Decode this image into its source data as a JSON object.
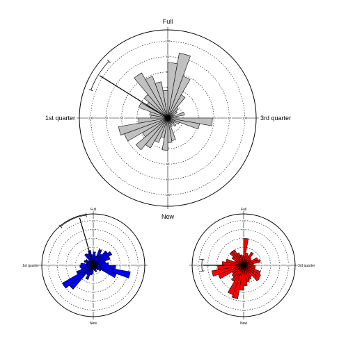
{
  "chart_data": [
    {
      "type": "rose",
      "compass_labels": {
        "top": "Full",
        "bottom": "New",
        "left": "1st quarter",
        "right": "3rd quarter"
      },
      "radial_max": 100,
      "ring_ticks": [
        "20",
        "40",
        "60",
        "80",
        "100"
      ],
      "grid": true,
      "color": "#c0c0c0",
      "bins_deg": [
        0,
        10,
        20,
        30,
        40,
        50,
        60,
        70,
        80,
        90,
        100,
        110,
        120,
        130,
        140,
        150,
        160,
        170,
        180,
        190,
        200,
        210,
        220,
        230,
        240,
        250,
        260,
        270,
        280,
        290,
        300,
        310,
        320,
        330,
        340,
        350
      ],
      "values": [
        72,
        86,
        58,
        35,
        18,
        14,
        8,
        22,
        12,
        58,
        42,
        16,
        10,
        14,
        8,
        12,
        30,
        32,
        42,
        26,
        34,
        45,
        54,
        38,
        60,
        65,
        38,
        22,
        24,
        40,
        32,
        40,
        68,
        58,
        48,
        36
      ],
      "mean_vector": {
        "angle_deg": 302,
        "length": 95,
        "ci_deg": [
          290,
          314
        ]
      }
    },
    {
      "type": "rose",
      "compass_labels": {
        "top": "Full",
        "bottom": "New",
        "left": "1st quarter",
        "right": ""
      },
      "radial_max": 100,
      "ring_ticks": [
        "20",
        "40",
        "60",
        "80",
        "100"
      ],
      "grid": true,
      "color": "#0000ff",
      "bins_deg": [
        0,
        10,
        20,
        30,
        40,
        50,
        60,
        70,
        80,
        90,
        100,
        110,
        120,
        130,
        140,
        150,
        160,
        170,
        180,
        190,
        200,
        210,
        220,
        230,
        240,
        250,
        260,
        270,
        280,
        290,
        300,
        310,
        320,
        330,
        340,
        350
      ],
      "values": [
        30,
        22,
        38,
        30,
        42,
        48,
        40,
        28,
        34,
        50,
        84,
        55,
        20,
        14,
        10,
        16,
        12,
        10,
        20,
        22,
        34,
        25,
        70,
        80,
        40,
        28,
        30,
        28,
        16,
        22,
        20,
        14,
        30,
        28,
        34,
        24
      ],
      "mean_vector": {
        "angle_deg": 344,
        "length": 100,
        "ci_deg": [
          320,
          352
        ]
      }
    },
    {
      "type": "rose",
      "compass_labels": {
        "top": "Full",
        "bottom": "New",
        "left": "",
        "right": "3rd quarter"
      },
      "radial_max": 100,
      "ring_ticks": [
        "20",
        "40",
        "60",
        "80",
        "100"
      ],
      "grid": true,
      "color": "#ff0000",
      "bins_deg": [
        0,
        10,
        20,
        30,
        40,
        50,
        60,
        70,
        80,
        90,
        100,
        110,
        120,
        130,
        140,
        150,
        160,
        170,
        180,
        190,
        200,
        210,
        220,
        230,
        240,
        250,
        260,
        270,
        280,
        290,
        300,
        310,
        320,
        330,
        340,
        350
      ],
      "values": [
        60,
        28,
        24,
        34,
        22,
        20,
        34,
        38,
        22,
        26,
        26,
        40,
        44,
        46,
        30,
        34,
        38,
        46,
        56,
        76,
        70,
        42,
        34,
        30,
        60,
        72,
        58,
        48,
        40,
        22,
        30,
        40,
        40,
        30,
        24,
        22
      ],
      "mean_vector": {
        "angle_deg": 270,
        "length": 82,
        "ci_deg": [
          262,
          278
        ]
      }
    }
  ]
}
